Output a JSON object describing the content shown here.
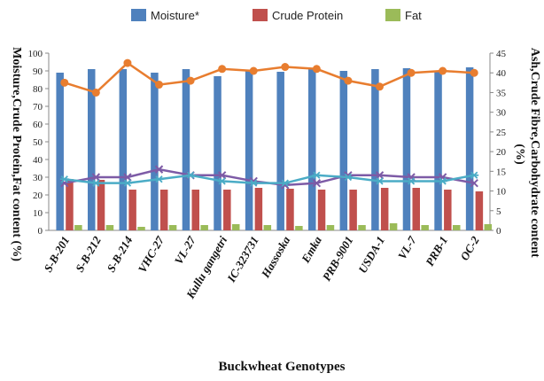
{
  "chart_data": {
    "type": "bar",
    "xlabel": "Buckwheat Genotypes",
    "ylabel_left": "Moisture,Crude Protein,Fat content (%)",
    "ylabel_right_lines": [
      "Ash,Crude Fibre,Carbohydrate content",
      "(%)"
    ],
    "ylim_left": [
      0,
      100
    ],
    "ylim_right": [
      0,
      45
    ],
    "yticks_left": [
      0,
      10,
      20,
      30,
      40,
      50,
      60,
      70,
      80,
      90,
      100
    ],
    "yticks_right": [
      0,
      5,
      10,
      15,
      20,
      25,
      30,
      35,
      40,
      45
    ],
    "legend_position": "top",
    "categories": [
      "S-B-201",
      "S-B-212",
      "S-B-214",
      "VHC-27",
      "VL-27",
      "Kullu gangetri",
      "IC-323731",
      "Hassoska",
      "Emka",
      "PRB-9001",
      "USDA-1",
      "VL-7",
      "PRB-1",
      "OC-2"
    ],
    "series": [
      {
        "name": "Moisture*",
        "kind": "bar",
        "axis": "left",
        "color": "#4f81bd",
        "values": [
          89,
          91,
          91,
          89,
          91,
          87,
          90,
          89.5,
          91,
          90,
          91,
          91.5,
          90,
          92
        ]
      },
      {
        "name": "Crude Protein",
        "kind": "bar",
        "axis": "left",
        "color": "#c0504d",
        "values": [
          29,
          28.5,
          23,
          23,
          23,
          23,
          24,
          23.5,
          23,
          23,
          24,
          24,
          23,
          22
        ]
      },
      {
        "name": "Fat",
        "kind": "bar",
        "axis": "left",
        "color": "#9bbb59",
        "values": [
          3,
          3,
          2,
          3,
          3,
          3.5,
          3,
          2.5,
          3,
          3,
          4,
          3,
          3,
          3.5
        ]
      },
      {
        "kind": "line",
        "axis": "right",
        "color": "#e87d2f",
        "marker": "circle",
        "values": [
          37.5,
          35,
          42.5,
          37,
          38,
          41,
          40.5,
          41.5,
          41,
          38,
          36.5,
          40,
          40.5,
          40
        ]
      },
      {
        "kind": "line",
        "axis": "right",
        "color": "#7d5ba6",
        "marker": "x",
        "values": [
          12,
          13.5,
          13.5,
          15.5,
          14,
          14,
          12.5,
          11.5,
          12,
          14,
          14,
          13.5,
          13.5,
          12
        ]
      },
      {
        "kind": "line",
        "axis": "right",
        "color": "#4bacc6",
        "marker": "asterisk",
        "values": [
          13,
          12,
          12,
          13,
          14,
          12.5,
          12,
          12,
          14,
          13.5,
          12.5,
          12.5,
          12.5,
          14
        ]
      }
    ]
  }
}
